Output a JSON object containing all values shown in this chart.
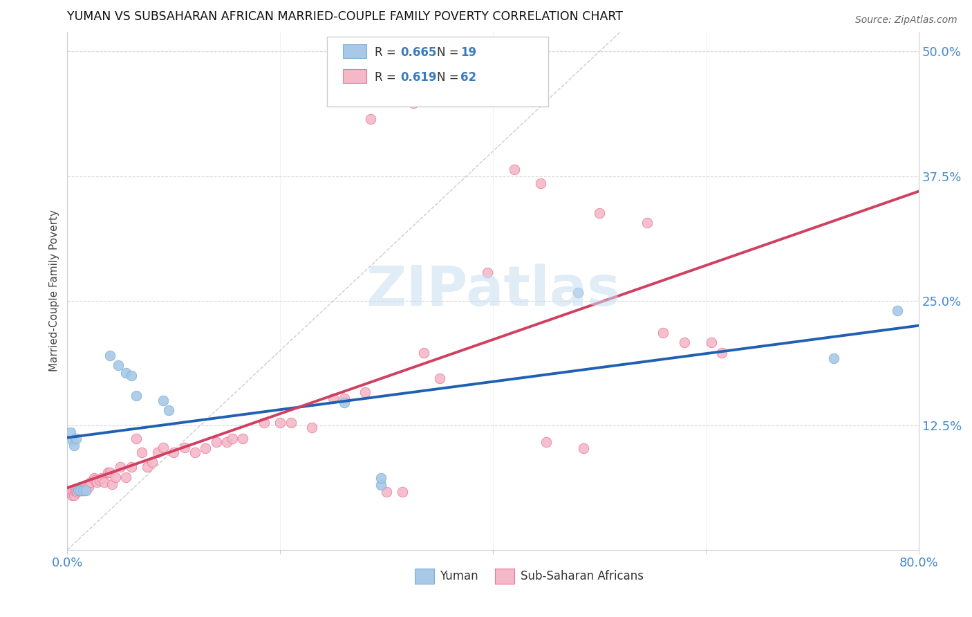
{
  "title": "YUMAN VS SUBSAHARAN AFRICAN MARRIED-COUPLE FAMILY POVERTY CORRELATION CHART",
  "source": "Source: ZipAtlas.com",
  "ylabel": "Married-Couple Family Poverty",
  "xlim": [
    0.0,
    0.8
  ],
  "ylim": [
    0.0,
    0.52
  ],
  "blue_color": "#a8c8e8",
  "blue_edge_color": "#7aaed4",
  "pink_color": "#f4b8c8",
  "pink_edge_color": "#e87898",
  "blue_line_color": "#2060b0",
  "pink_line_color": "#d04060",
  "ref_line_color": "#c0c0c0",
  "grid_color": "#d8d8d8",
  "tick_color": "#4488cc",
  "watermark_color": "#c8ddf0",
  "yuman_points": [
    [
      0.003,
      0.118
    ],
    [
      0.005,
      0.11
    ],
    [
      0.006,
      0.105
    ],
    [
      0.008,
      0.112
    ],
    [
      0.01,
      0.06
    ],
    [
      0.012,
      0.06
    ],
    [
      0.015,
      0.06
    ],
    [
      0.017,
      0.06
    ],
    [
      0.04,
      0.195
    ],
    [
      0.048,
      0.185
    ],
    [
      0.055,
      0.178
    ],
    [
      0.06,
      0.175
    ],
    [
      0.065,
      0.155
    ],
    [
      0.09,
      0.15
    ],
    [
      0.095,
      0.14
    ],
    [
      0.26,
      0.148
    ],
    [
      0.295,
      0.065
    ],
    [
      0.295,
      0.072
    ],
    [
      0.48,
      0.258
    ],
    [
      0.72,
      0.192
    ],
    [
      0.78,
      0.24
    ]
  ],
  "subsaharan_points": [
    [
      0.002,
      0.058
    ],
    [
      0.003,
      0.06
    ],
    [
      0.004,
      0.055
    ],
    [
      0.005,
      0.06
    ],
    [
      0.006,
      0.055
    ],
    [
      0.007,
      0.06
    ],
    [
      0.008,
      0.06
    ],
    [
      0.009,
      0.058
    ],
    [
      0.01,
      0.06
    ],
    [
      0.011,
      0.06
    ],
    [
      0.012,
      0.06
    ],
    [
      0.013,
      0.062
    ],
    [
      0.014,
      0.06
    ],
    [
      0.015,
      0.06
    ],
    [
      0.016,
      0.062
    ],
    [
      0.017,
      0.06
    ],
    [
      0.018,
      0.065
    ],
    [
      0.02,
      0.063
    ],
    [
      0.022,
      0.068
    ],
    [
      0.025,
      0.072
    ],
    [
      0.026,
      0.07
    ],
    [
      0.028,
      0.068
    ],
    [
      0.03,
      0.07
    ],
    [
      0.032,
      0.072
    ],
    [
      0.035,
      0.068
    ],
    [
      0.038,
      0.078
    ],
    [
      0.04,
      0.078
    ],
    [
      0.042,
      0.066
    ],
    [
      0.045,
      0.073
    ],
    [
      0.05,
      0.083
    ],
    [
      0.055,
      0.073
    ],
    [
      0.06,
      0.083
    ],
    [
      0.065,
      0.112
    ],
    [
      0.07,
      0.098
    ],
    [
      0.075,
      0.083
    ],
    [
      0.08,
      0.088
    ],
    [
      0.085,
      0.098
    ],
    [
      0.09,
      0.103
    ],
    [
      0.1,
      0.098
    ],
    [
      0.11,
      0.103
    ],
    [
      0.12,
      0.098
    ],
    [
      0.13,
      0.102
    ],
    [
      0.14,
      0.108
    ],
    [
      0.15,
      0.108
    ],
    [
      0.155,
      0.112
    ],
    [
      0.165,
      0.112
    ],
    [
      0.185,
      0.128
    ],
    [
      0.2,
      0.128
    ],
    [
      0.21,
      0.128
    ],
    [
      0.23,
      0.123
    ],
    [
      0.25,
      0.152
    ],
    [
      0.26,
      0.152
    ],
    [
      0.28,
      0.158
    ],
    [
      0.3,
      0.058
    ],
    [
      0.315,
      0.058
    ],
    [
      0.335,
      0.198
    ],
    [
      0.35,
      0.172
    ],
    [
      0.395,
      0.278
    ],
    [
      0.285,
      0.432
    ],
    [
      0.325,
      0.448
    ],
    [
      0.42,
      0.382
    ],
    [
      0.445,
      0.368
    ],
    [
      0.45,
      0.108
    ],
    [
      0.485,
      0.102
    ],
    [
      0.5,
      0.338
    ],
    [
      0.545,
      0.328
    ],
    [
      0.56,
      0.218
    ],
    [
      0.58,
      0.208
    ],
    [
      0.605,
      0.208
    ],
    [
      0.615,
      0.198
    ]
  ]
}
